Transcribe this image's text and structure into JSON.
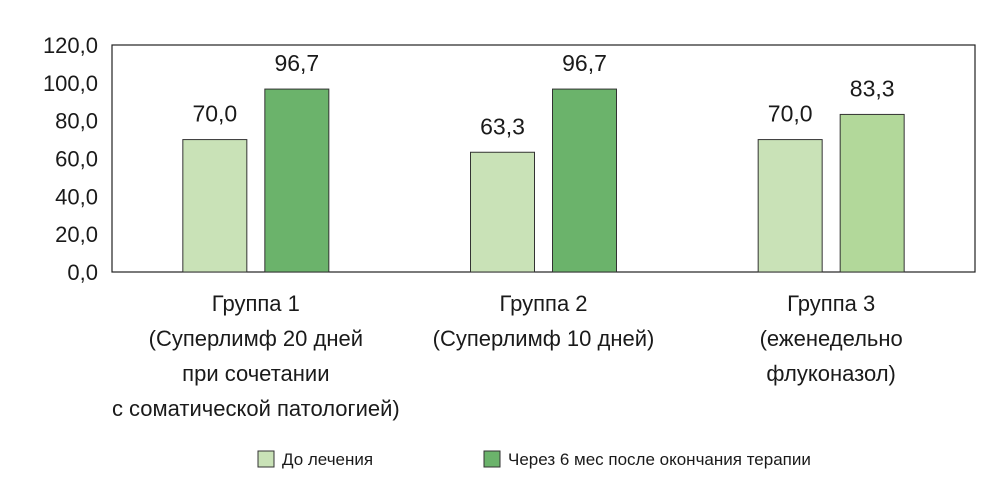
{
  "chart_data": {
    "type": "bar",
    "categories": [
      [
        "Группа 1",
        "(Суперлимф 20 дней",
        "при сочетании",
        "с соматической патологией)"
      ],
      [
        "Группа 2",
        "(Суперлимф 10 дней)"
      ],
      [
        "Группа 3",
        "(еженедельно",
        "флуконазол)"
      ]
    ],
    "series": [
      {
        "name": "До лечения",
        "values": [
          70.0,
          63.3,
          70.0
        ],
        "labels": [
          "70,0",
          "63,3",
          "70,0"
        ],
        "color": "#c9e2b7"
      },
      {
        "name": "Через 6 мес после окончания терапии",
        "values": [
          96.7,
          96.7,
          83.3
        ],
        "labels": [
          "96,7",
          "96,7",
          "83,3"
        ],
        "color": "#6bb36b",
        "point_colors": [
          "#6bb36b",
          "#6bb36b",
          "#b2d89a"
        ]
      }
    ],
    "ylim": [
      0,
      120
    ],
    "yticks": [
      0,
      20,
      40,
      60,
      80,
      100,
      120
    ],
    "ytick_labels": [
      "0,0",
      "20,0",
      "40,0",
      "60,0",
      "80,0",
      "100,0",
      "120,0"
    ],
    "title": "",
    "xlabel": "",
    "ylabel": "",
    "grid": false,
    "legend_position": "bottom"
  }
}
